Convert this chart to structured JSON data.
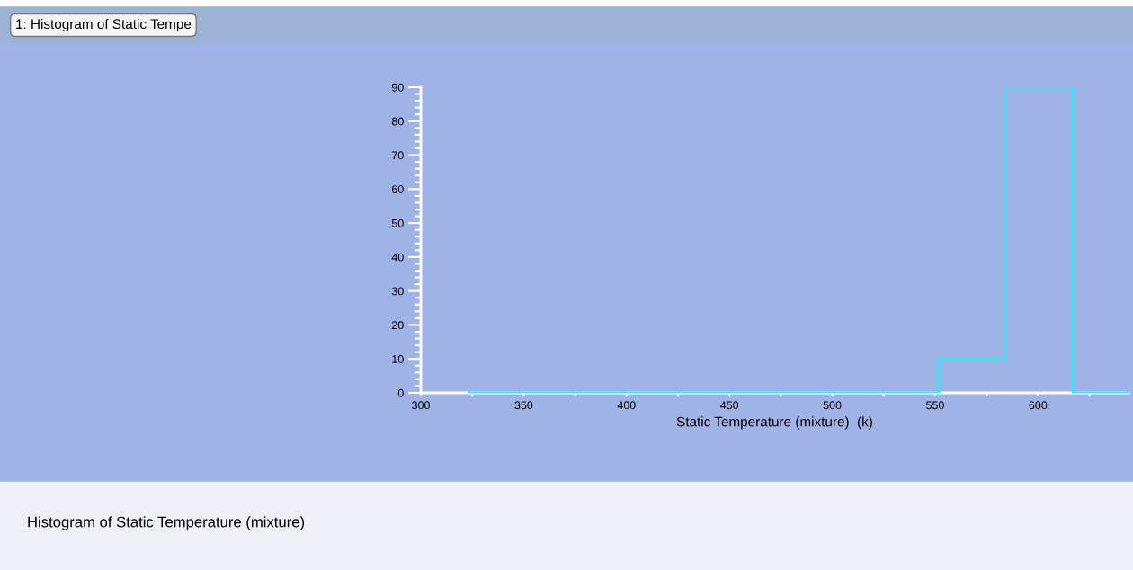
{
  "chart_data": {
    "type": "histogram",
    "title": "Histogram of Static Temperature (mixture)",
    "xlabel": "Static Temperature (mixture)  (k)",
    "annotations": [
      "1: Histogram of Static Tempe"
    ],
    "bins": [
      323,
      355.7,
      388.3,
      421,
      453.7,
      486.3,
      519,
      551.7,
      584.3,
      617,
      644
    ],
    "values": [
      0,
      0,
      0,
      0,
      0,
      0,
      0,
      10,
      90,
      0
    ],
    "color": "#33e8f0",
    "xlim": [
      300,
      644
    ],
    "xticks": [
      300,
      350,
      400,
      450,
      500,
      550,
      600
    ],
    "ylim": [
      0,
      90
    ],
    "yticks": [
      0,
      10,
      20,
      30,
      40,
      50,
      60,
      70,
      80,
      90
    ],
    "grid": false
  }
}
